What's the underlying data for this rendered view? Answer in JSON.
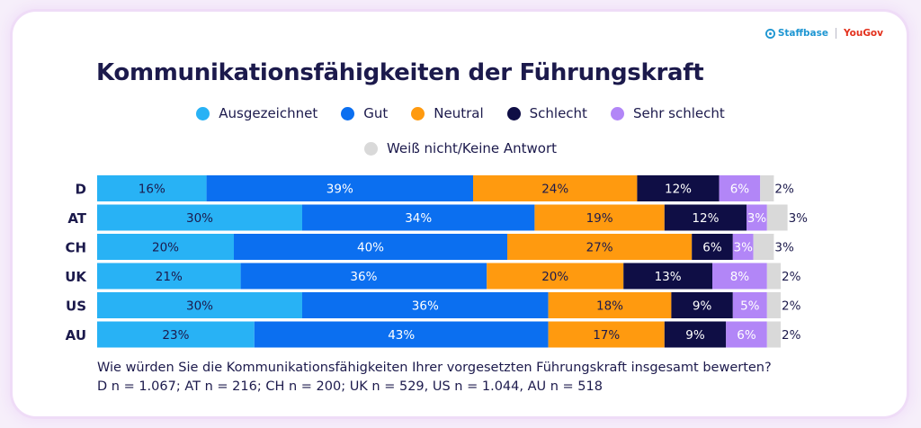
{
  "brand": {
    "left": "Staffbase",
    "right": "YouGov"
  },
  "chart_data": {
    "type": "bar",
    "orientation": "horizontal",
    "stacked": true,
    "title": "Kommunikationsfähigkeiten der Führungskraft",
    "categories": [
      "D",
      "AT",
      "CH",
      "UK",
      "US",
      "AU"
    ],
    "series": [
      {
        "name": "Ausgezeichnet",
        "color": "#28b2f5",
        "values": [
          16,
          30,
          20,
          21,
          30,
          23
        ]
      },
      {
        "name": "Gut",
        "color": "#0b6ff0",
        "values": [
          39,
          34,
          40,
          36,
          36,
          43
        ]
      },
      {
        "name": "Neutral",
        "color": "#ff9a0f",
        "values": [
          24,
          19,
          27,
          20,
          18,
          17
        ]
      },
      {
        "name": "Schlecht",
        "color": "#0f0e45",
        "values": [
          12,
          12,
          6,
          13,
          9,
          9
        ]
      },
      {
        "name": "Sehr schlecht",
        "color": "#b286f7",
        "values": [
          6,
          3,
          3,
          8,
          5,
          6
        ]
      },
      {
        "name": "Weiß nicht/Keine Antwort",
        "color": "#d9d9d9",
        "values": [
          2,
          3,
          3,
          2,
          2,
          2
        ]
      }
    ],
    "label_colors": [
      "#1c1a4c",
      "#ffffff",
      "#1c1a4c",
      "#ffffff",
      "#ffffff",
      "#1c1a4c"
    ],
    "value_suffix": "%",
    "xlim": [
      0,
      100
    ]
  },
  "caption": {
    "question": "Wie würden Sie die Kommunikationsfähigkeiten Ihrer vorgesetzten Führungskraft insgesamt bewerten?",
    "sample": "D n = 1.067; AT n = 216; CH n = 200; UK n = 529, US n = 1.044, AU n = 518"
  }
}
